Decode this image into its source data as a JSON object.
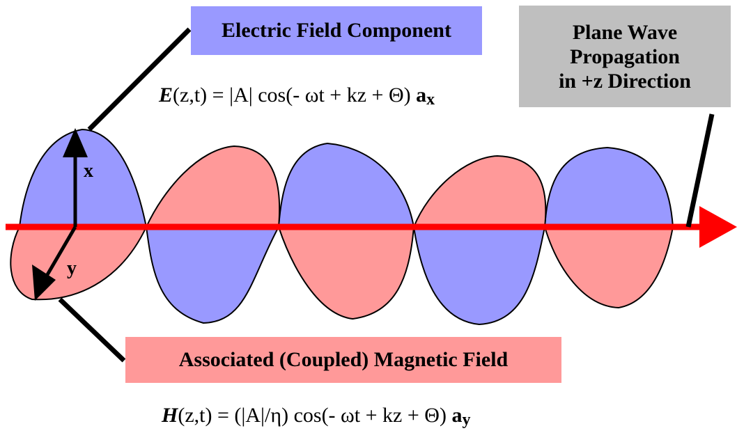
{
  "labels": {
    "electric": "Electric Field Component",
    "plane_line1": "Plane Wave",
    "plane_line2": "Propagation",
    "plane_line3": "in +z Direction",
    "magnetic": "Associated (Coupled) Magnetic Field",
    "axis_x": "x",
    "axis_y": "y"
  },
  "equations": {
    "e_symbol": "E",
    "e_body": "(z,t) = |A| cos(- ωt + kz  + Θ) ",
    "e_unit": "a",
    "e_unit_sub": "x",
    "h_symbol": "H",
    "h_body": "(z,t) = (|A|/η) cos(- ωt + kz + Θ) ",
    "h_unit": "a",
    "h_unit_sub": "y"
  },
  "colors": {
    "electric": "#9999ff",
    "magnetic": "#ff9999",
    "propagation_box": "#bfbfbf",
    "axis_arrow": "#ff0000"
  }
}
